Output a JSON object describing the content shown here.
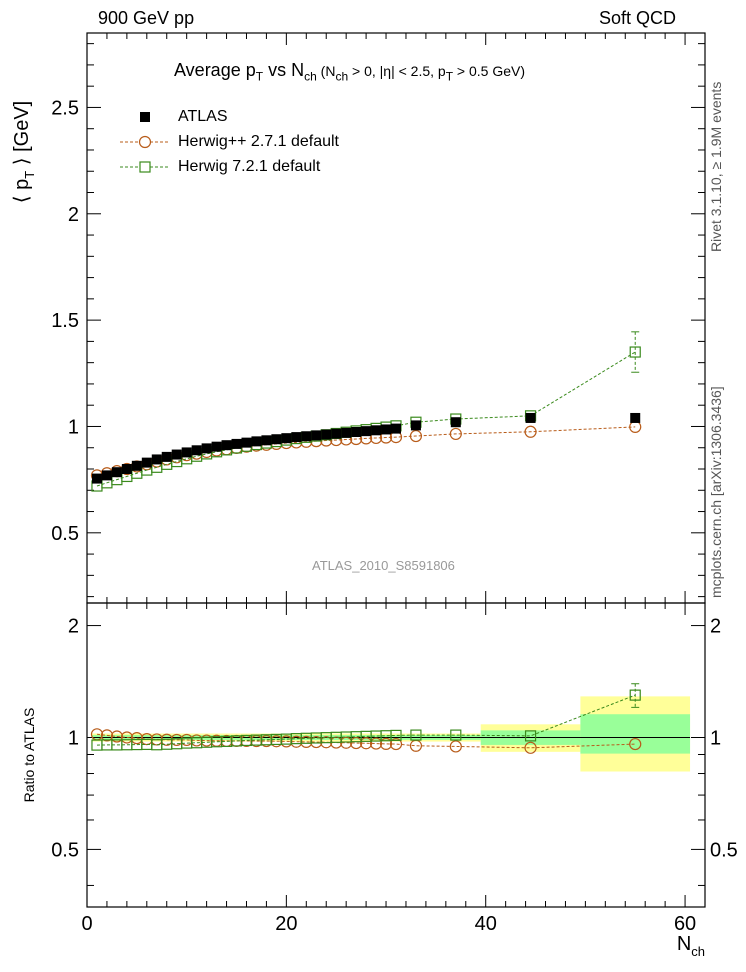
{
  "header": {
    "left": "900 GeV pp",
    "right": "Soft QCD"
  },
  "side_labels": {
    "top": "Rivet 3.1.10, ≥ 1.9M events",
    "bottom": "mcplots.cern.ch [arXiv:1306.3436]"
  },
  "watermark": "ATLAS_2010_S8591806",
  "chart_data": [
    {
      "type": "scatter",
      "panel": "main",
      "title_parts": {
        "a": "Average p",
        "a_sub": "T",
        "b": " vs N",
        "b_sub": "ch",
        "c": " (N",
        "c_sub": "ch",
        "d": " > 0, |η| < 2.5, p",
        "d_sub": "T",
        "e": " > 0.5 GeV)"
      },
      "ylabel": "⟨ p_T ⟩ [GeV]",
      "xlim": [
        0,
        62
      ],
      "ylim": [
        0.17,
        2.85
      ],
      "yticks": [
        0.5,
        1,
        1.5,
        2,
        2.5
      ],
      "ytick_labels": [
        "0.5",
        "1",
        "1.5",
        "2",
        "2.5"
      ],
      "legend": [
        "ATLAS",
        "Herwig++ 2.7.1 default",
        "Herwig 7.2.1 default"
      ],
      "legend_position": "top-left",
      "series": [
        {
          "name": "ATLAS",
          "marker": "filled-square",
          "color": "#000000",
          "x": [
            1,
            2,
            3,
            4,
            5,
            6,
            7,
            8,
            9,
            10,
            11,
            12,
            13,
            14,
            15,
            16,
            17,
            18,
            19,
            20,
            21,
            22,
            23,
            24,
            25,
            26,
            27,
            28,
            29,
            30,
            31,
            33,
            37,
            44.5,
            55
          ],
          "y": [
            0.755,
            0.77,
            0.785,
            0.8,
            0.815,
            0.83,
            0.845,
            0.857,
            0.868,
            0.878,
            0.888,
            0.897,
            0.905,
            0.912,
            0.918,
            0.924,
            0.93,
            0.935,
            0.94,
            0.945,
            0.95,
            0.954,
            0.958,
            0.962,
            0.966,
            0.97,
            0.974,
            0.978,
            0.982,
            0.986,
            0.99,
            1.005,
            1.02,
            1.04,
            1.04
          ]
        },
        {
          "name": "Herwig++ 2.7.1 default",
          "marker": "open-circle",
          "color": "#b85c1a",
          "x": [
            1,
            2,
            3,
            4,
            5,
            6,
            7,
            8,
            9,
            10,
            11,
            12,
            13,
            14,
            15,
            16,
            17,
            18,
            19,
            20,
            21,
            22,
            23,
            24,
            25,
            26,
            27,
            28,
            29,
            30,
            31,
            33,
            37,
            44.5,
            55
          ],
          "y": [
            0.77,
            0.78,
            0.79,
            0.8,
            0.812,
            0.822,
            0.835,
            0.845,
            0.855,
            0.865,
            0.872,
            0.88,
            0.887,
            0.893,
            0.899,
            0.905,
            0.91,
            0.914,
            0.918,
            0.922,
            0.925,
            0.928,
            0.931,
            0.934,
            0.936,
            0.939,
            0.941,
            0.944,
            0.946,
            0.948,
            0.95,
            0.955,
            0.965,
            0.975,
            0.998
          ]
        },
        {
          "name": "Herwig 7.2.1 default",
          "marker": "open-square",
          "color": "#3a8a1c",
          "x": [
            1,
            2,
            3,
            4,
            5,
            6,
            7,
            8,
            9,
            10,
            11,
            12,
            13,
            14,
            15,
            16,
            17,
            18,
            19,
            20,
            21,
            22,
            23,
            24,
            25,
            26,
            27,
            28,
            29,
            30,
            31,
            33,
            37,
            44.5,
            55
          ],
          "y": [
            0.72,
            0.735,
            0.75,
            0.765,
            0.78,
            0.795,
            0.808,
            0.822,
            0.835,
            0.848,
            0.86,
            0.871,
            0.881,
            0.89,
            0.899,
            0.907,
            0.915,
            0.922,
            0.929,
            0.936,
            0.943,
            0.949,
            0.955,
            0.961,
            0.967,
            0.973,
            0.979,
            0.985,
            0.991,
            0.997,
            1.003,
            1.02,
            1.035,
            1.05,
            1.35
          ],
          "yerr": [
            0,
            0,
            0,
            0,
            0,
            0,
            0,
            0,
            0,
            0,
            0,
            0,
            0,
            0,
            0,
            0,
            0,
            0,
            0,
            0,
            0,
            0,
            0,
            0,
            0,
            0,
            0,
            0,
            0,
            0,
            0,
            0,
            0,
            0,
            0.095
          ]
        }
      ]
    },
    {
      "type": "scatter",
      "panel": "ratio",
      "ylabel": "Ratio to ATLAS",
      "xlabel": "N_ch",
      "xlim": [
        0,
        62
      ],
      "ylim": [
        0.35,
        2.3
      ],
      "xticks": [
        0,
        20,
        40,
        60
      ],
      "xtick_labels": [
        "0",
        "20",
        "40",
        "60"
      ],
      "yticks": [
        0.5,
        1,
        2
      ],
      "ytick_labels": [
        "0.5",
        "1",
        "2"
      ],
      "bands": [
        {
          "x0": 0.5,
          "x1": 39.5,
          "yellow": [
            0.975,
            1.025
          ],
          "green": [
            0.985,
            1.015
          ]
        },
        {
          "x0": 39.5,
          "x1": 49.5,
          "yellow": [
            0.915,
            1.085
          ],
          "green": [
            0.955,
            1.045
          ]
        },
        {
          "x0": 49.5,
          "x1": 60.5,
          "yellow": [
            0.81,
            1.29
          ],
          "green": [
            0.905,
            1.155
          ]
        }
      ],
      "series": [
        {
          "name": "Herwig++ 2.7.1 default",
          "marker": "open-circle",
          "color": "#b85c1a",
          "x": [
            1,
            2,
            3,
            4,
            5,
            6,
            7,
            8,
            9,
            10,
            11,
            12,
            13,
            14,
            15,
            16,
            17,
            18,
            19,
            20,
            21,
            22,
            23,
            24,
            25,
            26,
            27,
            28,
            29,
            30,
            31,
            33,
            37,
            44.5,
            55
          ],
          "y": [
            1.02,
            1.013,
            1.006,
            1.0,
            0.996,
            0.99,
            0.988,
            0.986,
            0.985,
            0.985,
            0.982,
            0.981,
            0.98,
            0.979,
            0.979,
            0.979,
            0.978,
            0.978,
            0.977,
            0.976,
            0.974,
            0.973,
            0.972,
            0.971,
            0.969,
            0.968,
            0.966,
            0.965,
            0.963,
            0.961,
            0.96,
            0.95,
            0.946,
            0.938,
            0.96
          ]
        },
        {
          "name": "Herwig 7.2.1 default",
          "marker": "open-square",
          "color": "#3a8a1c",
          "x": [
            1,
            2,
            3,
            4,
            5,
            6,
            7,
            8,
            9,
            10,
            11,
            12,
            13,
            14,
            15,
            16,
            17,
            18,
            19,
            20,
            21,
            22,
            23,
            24,
            25,
            26,
            27,
            28,
            29,
            30,
            31,
            33,
            37,
            44.5,
            55
          ],
          "y": [
            0.954,
            0.955,
            0.955,
            0.956,
            0.957,
            0.958,
            0.956,
            0.959,
            0.962,
            0.966,
            0.968,
            0.971,
            0.974,
            0.976,
            0.979,
            0.982,
            0.984,
            0.986,
            0.988,
            0.99,
            0.993,
            0.995,
            0.997,
            0.999,
            1.001,
            1.003,
            1.005,
            1.007,
            1.009,
            1.011,
            1.013,
            1.015,
            1.015,
            1.01,
            1.3
          ],
          "yerr": [
            0,
            0,
            0,
            0,
            0,
            0,
            0,
            0,
            0,
            0,
            0,
            0,
            0,
            0,
            0,
            0,
            0,
            0,
            0,
            0,
            0,
            0,
            0,
            0,
            0,
            0,
            0,
            0,
            0,
            0,
            0,
            0,
            0,
            0,
            0.095
          ]
        }
      ]
    }
  ]
}
